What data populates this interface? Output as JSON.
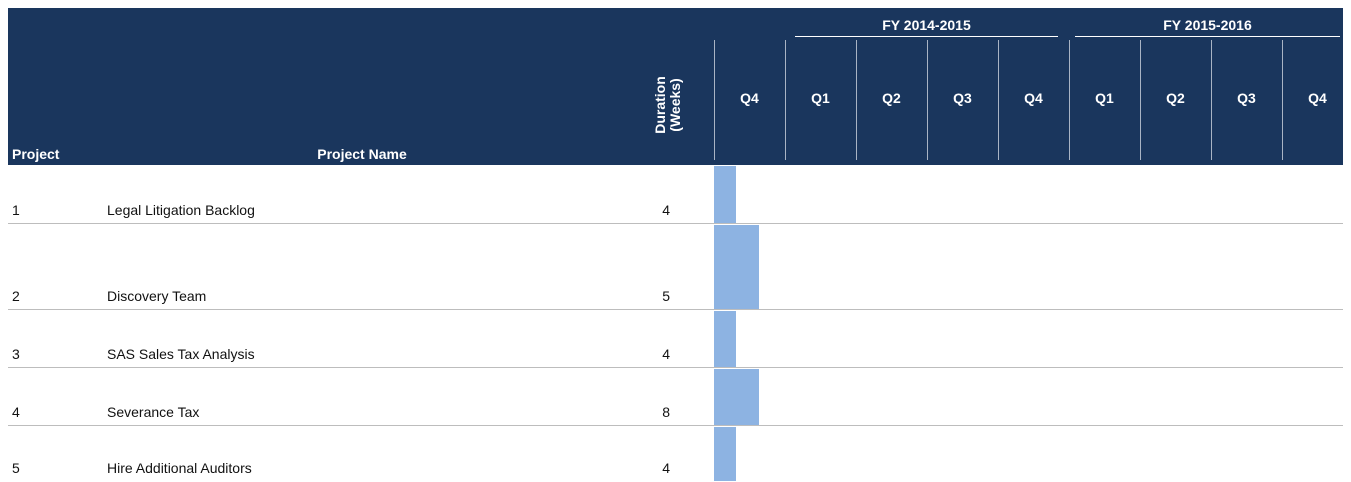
{
  "header": {
    "project": "Project",
    "project_name": "Project Name",
    "duration": "Duration (Weeks)",
    "fiscal_years": [
      "FY 2014-2015",
      "FY 2015-2016"
    ],
    "quarters": [
      "Q4",
      "Q1",
      "Q2",
      "Q3",
      "Q4",
      "Q1",
      "Q2",
      "Q3",
      "Q4"
    ]
  },
  "rows": [
    {
      "project": "1",
      "name": "Legal Litigation Backlog",
      "duration": 4
    },
    {
      "project": "2",
      "name": "Discovery Team",
      "duration": 5
    },
    {
      "project": "3",
      "name": "SAS Sales Tax Analysis",
      "duration": 4
    },
    {
      "project": "4",
      "name": "Severance Tax",
      "duration": 8
    },
    {
      "project": "5",
      "name": "Hire Additional Auditors",
      "duration": 4
    }
  ]
}
